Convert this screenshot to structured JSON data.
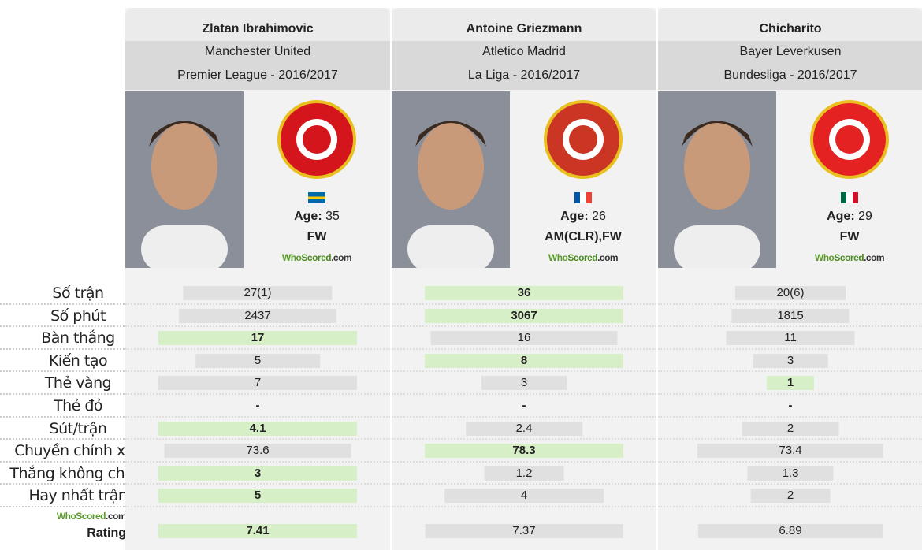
{
  "stat_labels": [
    "Số trận",
    "Số phút",
    "Bàn thắng",
    "Kiến tạo",
    "Thẻ vàng",
    "Thẻ đỏ",
    "Sút/trận",
    "Chuyền chính xác",
    "Thắng không chiến",
    "Hay nhất trận"
  ],
  "rating_label": {
    "brand_a": "WhoScored",
    "brand_b": ".com",
    "label": "Rating"
  },
  "colors": {
    "best": "#d6efc6",
    "normal": "#e0e0e0"
  },
  "players": [
    {
      "name": "Zlatan Ibrahimovic",
      "club": "Manchester United",
      "league": "Premier League - 2016/2017",
      "crest": "manchester-united-crest",
      "crest_color": "#d4161c",
      "flag": "sweden",
      "age_label": "Age:",
      "age": "35",
      "position": "FW",
      "stats": [
        {
          "v": "27(1)",
          "n": 27
        },
        {
          "v": "2437",
          "n": 2437
        },
        {
          "v": "17",
          "n": 17,
          "best": true
        },
        {
          "v": "5",
          "n": 5
        },
        {
          "v": "7",
          "n": 7
        },
        {
          "v": "-",
          "n": 0
        },
        {
          "v": "4.1",
          "n": 4.1,
          "best": true
        },
        {
          "v": "73.6",
          "n": 73.6
        },
        {
          "v": "3",
          "n": 3,
          "best": true
        },
        {
          "v": "5",
          "n": 5,
          "best": true
        }
      ],
      "rating": {
        "v": "7.41",
        "n": 7.41,
        "best": true
      }
    },
    {
      "name": "Antoine Griezmann",
      "club": "Atletico Madrid",
      "league": "La Liga - 2016/2017",
      "crest": "atletico-madrid-crest",
      "crest_color": "#cb3524",
      "flag": "france",
      "age_label": "Age:",
      "age": "26",
      "position": "AM(CLR),FW",
      "stats": [
        {
          "v": "36",
          "n": 36,
          "best": true
        },
        {
          "v": "3067",
          "n": 3067,
          "best": true
        },
        {
          "v": "16",
          "n": 16
        },
        {
          "v": "8",
          "n": 8,
          "best": true
        },
        {
          "v": "3",
          "n": 3
        },
        {
          "v": "-",
          "n": 0
        },
        {
          "v": "2.4",
          "n": 2.4
        },
        {
          "v": "78.3",
          "n": 78.3,
          "best": true
        },
        {
          "v": "1.2",
          "n": 1.2
        },
        {
          "v": "4",
          "n": 4
        }
      ],
      "rating": {
        "v": "7.37",
        "n": 7.37
      }
    },
    {
      "name": "Chicharito",
      "club": "Bayer Leverkusen",
      "league": "Bundesliga - 2016/2017",
      "crest": "bayer-leverkusen-crest",
      "crest_color": "#e32221",
      "flag": "mexico",
      "age_label": "Age:",
      "age": "29",
      "position": "FW",
      "stats": [
        {
          "v": "20(6)",
          "n": 20
        },
        {
          "v": "1815",
          "n": 1815
        },
        {
          "v": "11",
          "n": 11
        },
        {
          "v": "3",
          "n": 3
        },
        {
          "v": "1",
          "n": 1,
          "best": true
        },
        {
          "v": "-",
          "n": 0
        },
        {
          "v": "2",
          "n": 2
        },
        {
          "v": "73.4",
          "n": 73.4
        },
        {
          "v": "1.3",
          "n": 1.3
        },
        {
          "v": "2",
          "n": 2
        }
      ],
      "rating": {
        "v": "6.89",
        "n": 6.89
      }
    }
  ]
}
